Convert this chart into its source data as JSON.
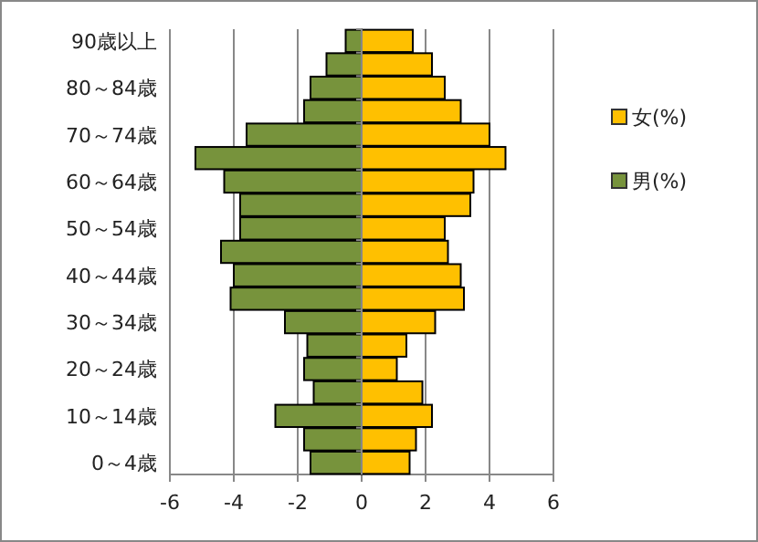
{
  "chart_data": {
    "type": "bar",
    "orientation": "horizontal",
    "stacked": true,
    "categories": [
      "90歳以上",
      null,
      "80～84歳",
      null,
      "70～74歳",
      null,
      "60～64歳",
      null,
      "50～54歳",
      null,
      "40～44歳",
      null,
      "30～34歳",
      null,
      "20～24歳",
      null,
      "10～14歳",
      null,
      "0～4歳"
    ],
    "series": [
      {
        "name": "男(%)",
        "color": "#77933c",
        "values": [
          -0.5,
          -1.1,
          -1.6,
          -1.8,
          -3.6,
          -5.2,
          -4.3,
          -3.8,
          -3.8,
          -4.4,
          -4.0,
          -4.1,
          -2.4,
          -1.7,
          -1.8,
          -1.5,
          -2.7,
          -1.8,
          -1.6
        ]
      },
      {
        "name": "女(%)",
        "color": "#ffc000",
        "values": [
          1.6,
          2.2,
          2.6,
          3.1,
          4.0,
          4.5,
          3.5,
          3.4,
          2.6,
          2.7,
          3.1,
          3.2,
          2.3,
          1.4,
          1.1,
          1.9,
          2.2,
          1.7,
          1.5
        ]
      }
    ],
    "xlim": [
      -6,
      6
    ],
    "xticks": [
      -6,
      -4,
      -2,
      0,
      2,
      4,
      6
    ],
    "grid": "x",
    "legend": "right"
  }
}
